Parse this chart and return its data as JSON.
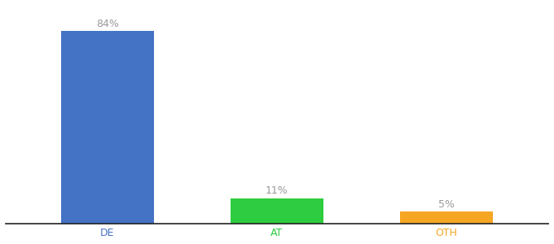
{
  "categories": [
    "DE",
    "AT",
    "OTH"
  ],
  "values": [
    84,
    11,
    5
  ],
  "bar_colors": [
    "#4472c4",
    "#2ecc40",
    "#f5a623"
  ],
  "labels": [
    "84%",
    "11%",
    "5%"
  ],
  "ylim": [
    0,
    95
  ],
  "background_color": "#ffffff",
  "label_color": "#999999",
  "bar_width": 0.55,
  "label_fontsize": 9,
  "tick_fontsize": 9,
  "x_positions": [
    0,
    1,
    2
  ]
}
